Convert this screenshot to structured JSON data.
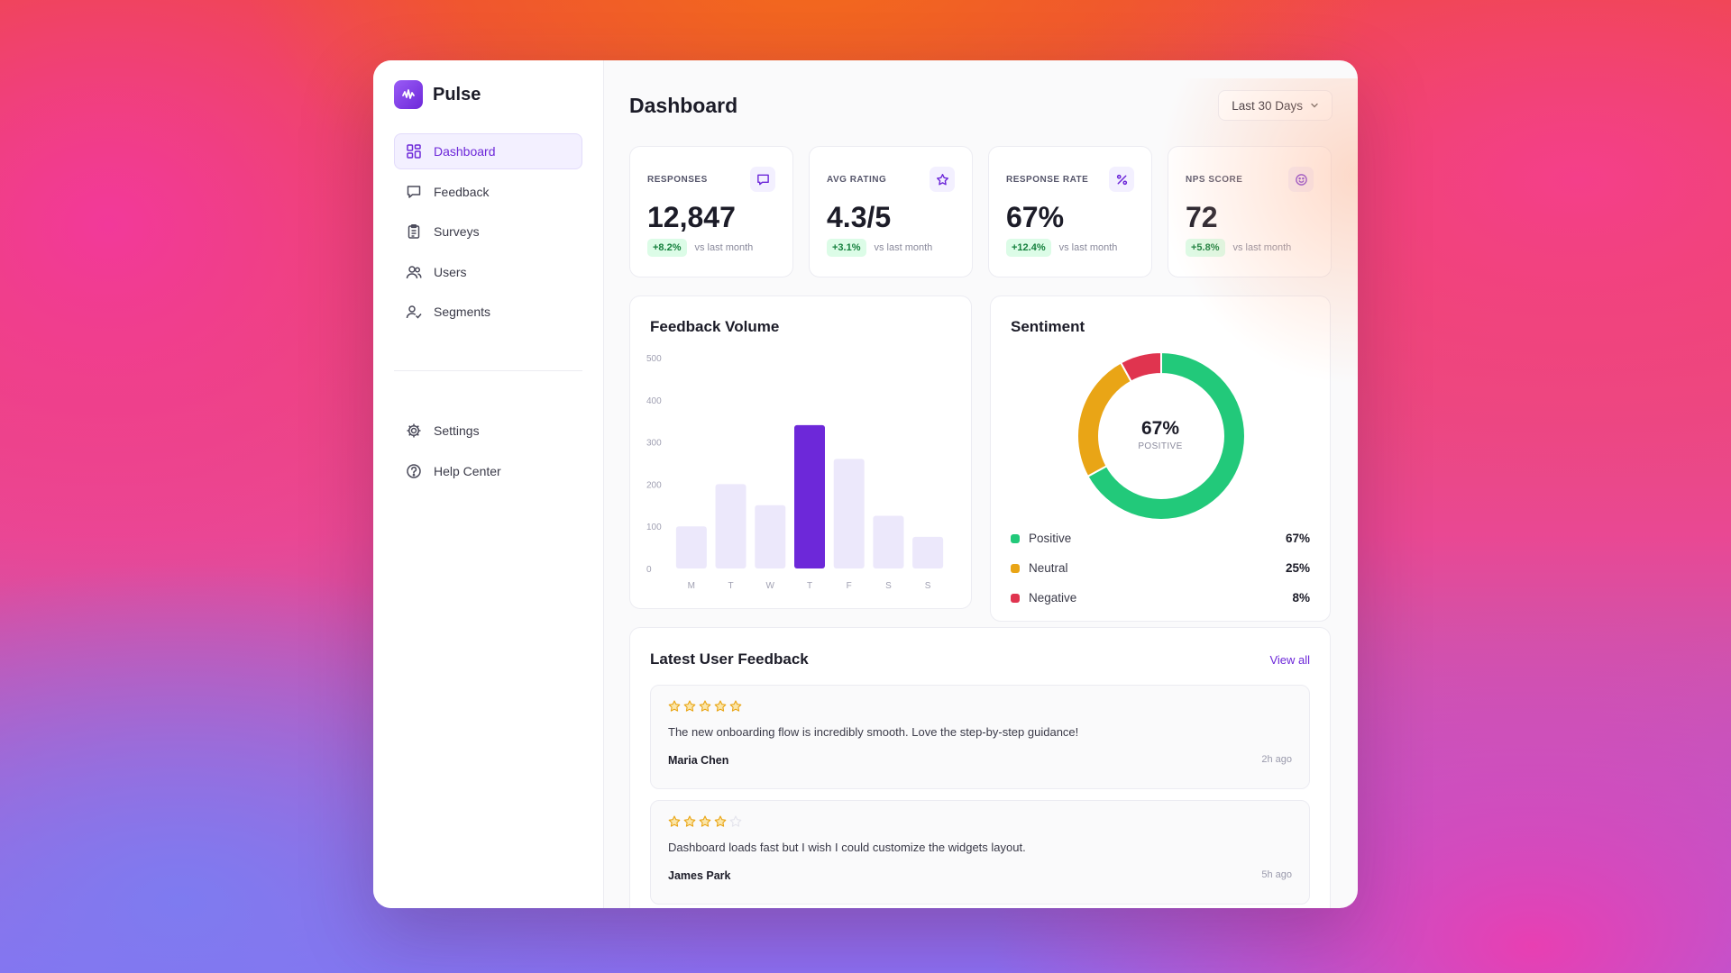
{
  "brand": {
    "name": "Pulse"
  },
  "sidebar": {
    "items": [
      {
        "label": "Dashboard",
        "icon": "grid-icon",
        "active": true
      },
      {
        "label": "Feedback",
        "icon": "message-icon"
      },
      {
        "label": "Surveys",
        "icon": "clipboard-icon"
      },
      {
        "label": "Users",
        "icon": "users-icon"
      },
      {
        "label": "Segments",
        "icon": "user-check-icon"
      }
    ],
    "bottom_items": [
      {
        "label": "Settings",
        "icon": "gear-icon"
      },
      {
        "label": "Help Center",
        "icon": "help-icon"
      }
    ]
  },
  "header": {
    "title": "Dashboard",
    "range": "Last 30 Days"
  },
  "stats": [
    {
      "label": "RESPONSES",
      "value": "12,847",
      "delta": "+8.2%",
      "sub": "vs last month",
      "icon": "message-icon"
    },
    {
      "label": "AVG RATING",
      "value": "4.3/5",
      "delta": "+3.1%",
      "sub": "vs last month",
      "icon": "star-icon"
    },
    {
      "label": "RESPONSE RATE",
      "value": "67%",
      "delta": "+12.4%",
      "sub": "vs last month",
      "icon": "percent-icon"
    },
    {
      "label": "NPS SCORE",
      "value": "72",
      "delta": "+5.8%",
      "sub": "vs last month",
      "icon": "smile-icon"
    }
  ],
  "volume": {
    "title": "Feedback Volume"
  },
  "sentiment": {
    "title": "Sentiment",
    "center_value": "67%",
    "center_label": "POSITIVE",
    "legend": [
      {
        "label": "Positive",
        "value": "67%",
        "color": "#22c97a"
      },
      {
        "label": "Neutral",
        "value": "25%",
        "color": "#e9a516"
      },
      {
        "label": "Negative",
        "value": "8%",
        "color": "#e0344f"
      }
    ]
  },
  "feedback": {
    "title": "Latest User Feedback",
    "view_all": "View all",
    "items": [
      {
        "rating": 5,
        "text": "The new onboarding flow is incredibly smooth. Love the step-by-step guidance!",
        "author": "Maria Chen",
        "time": "2h ago"
      },
      {
        "rating": 4,
        "text": "Dashboard loads fast but I wish I could customize the widgets layout.",
        "author": "James Park",
        "time": "5h ago"
      }
    ]
  },
  "chart_data": [
    {
      "type": "bar",
      "title": "Feedback Volume",
      "categories": [
        "M",
        "T",
        "W",
        "T",
        "F",
        "S",
        "S"
      ],
      "values": [
        100,
        200,
        150,
        340,
        260,
        125,
        75
      ],
      "highlight_index": 3,
      "yticks": [
        0,
        100,
        200,
        300,
        400,
        500
      ],
      "ylim": [
        0,
        500
      ],
      "colors": {
        "bar": "#ece8fb",
        "highlight": "#6d28d9"
      },
      "grid": false
    },
    {
      "type": "pie",
      "title": "Sentiment",
      "labels": [
        "Positive",
        "Neutral",
        "Negative"
      ],
      "values": [
        67,
        25,
        8
      ],
      "colors": [
        "#22c97a",
        "#e9a516",
        "#e0344f"
      ]
    }
  ]
}
